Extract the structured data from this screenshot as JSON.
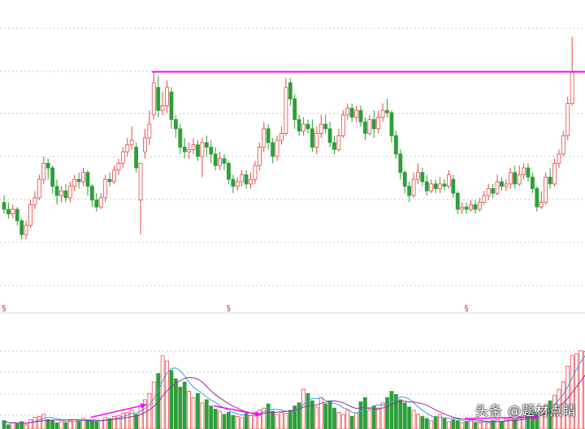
{
  "chart_data": {
    "type": "candlestick_with_volume",
    "title": "",
    "colors": {
      "up": "#e8474a",
      "down": "#2e9e3a",
      "resistance": "#ff00ff",
      "arrow": "#ff00ff",
      "ma_short": "#3aa0e0",
      "ma_long": "#a02a9a",
      "grid": "#c8c8c8",
      "divider": "#d0d0d0"
    },
    "price_range": [
      3.0,
      16.4
    ],
    "volume_range": [
      0,
      100
    ],
    "resistance_level": 13.28,
    "markers": [
      {
        "index": 0,
        "symbol": "§"
      },
      {
        "index": 51,
        "symbol": "§"
      },
      {
        "index": 105,
        "symbol": "§"
      }
    ],
    "candles": [
      {
        "o": 7.6,
        "c": 7.3,
        "h": 7.9,
        "l": 7.1
      },
      {
        "o": 7.3,
        "c": 7.1,
        "h": 7.6,
        "l": 6.9
      },
      {
        "o": 7.1,
        "c": 7.3,
        "h": 7.5,
        "l": 6.9
      },
      {
        "o": 7.3,
        "c": 6.8,
        "h": 7.4,
        "l": 6.6
      },
      {
        "o": 6.8,
        "c": 6.2,
        "h": 6.9,
        "l": 6.0
      },
      {
        "o": 6.2,
        "c": 6.6,
        "h": 6.8,
        "l": 6.0
      },
      {
        "o": 6.6,
        "c": 7.5,
        "h": 7.7,
        "l": 6.5
      },
      {
        "o": 7.5,
        "c": 7.8,
        "h": 8.1,
        "l": 7.3
      },
      {
        "o": 7.8,
        "c": 8.6,
        "h": 8.8,
        "l": 7.7
      },
      {
        "o": 8.6,
        "c": 9.3,
        "h": 9.6,
        "l": 8.4
      },
      {
        "o": 9.3,
        "c": 9.1,
        "h": 9.5,
        "l": 8.6
      },
      {
        "o": 9.1,
        "c": 8.3,
        "h": 9.2,
        "l": 8.0
      },
      {
        "o": 8.3,
        "c": 7.9,
        "h": 8.6,
        "l": 7.5
      },
      {
        "o": 7.9,
        "c": 8.1,
        "h": 8.3,
        "l": 7.6
      },
      {
        "o": 8.1,
        "c": 7.8,
        "h": 8.4,
        "l": 7.6
      },
      {
        "o": 7.8,
        "c": 8.3,
        "h": 8.5,
        "l": 7.6
      },
      {
        "o": 8.3,
        "c": 8.6,
        "h": 8.8,
        "l": 8.1
      },
      {
        "o": 8.6,
        "c": 8.5,
        "h": 8.9,
        "l": 8.2
      },
      {
        "o": 8.5,
        "c": 8.9,
        "h": 9.1,
        "l": 8.3
      },
      {
        "o": 8.9,
        "c": 8.3,
        "h": 9.0,
        "l": 7.9
      },
      {
        "o": 8.3,
        "c": 7.7,
        "h": 8.4,
        "l": 7.4
      },
      {
        "o": 7.7,
        "c": 7.4,
        "h": 8.0,
        "l": 7.2
      },
      {
        "o": 7.4,
        "c": 7.8,
        "h": 8.0,
        "l": 7.3
      },
      {
        "o": 7.8,
        "c": 8.6,
        "h": 8.8,
        "l": 7.6
      },
      {
        "o": 8.6,
        "c": 8.5,
        "h": 8.9,
        "l": 8.3
      },
      {
        "o": 8.5,
        "c": 9.0,
        "h": 9.2,
        "l": 8.4
      },
      {
        "o": 9.0,
        "c": 9.3,
        "h": 9.5,
        "l": 8.8
      },
      {
        "o": 9.3,
        "c": 9.8,
        "h": 10.0,
        "l": 9.1
      },
      {
        "o": 9.8,
        "c": 10.1,
        "h": 10.4,
        "l": 9.6
      },
      {
        "o": 10.1,
        "c": 10.3,
        "h": 10.9,
        "l": 9.9
      },
      {
        "o": 10.0,
        "c": 9.1,
        "h": 10.2,
        "l": 8.9
      },
      {
        "o": 7.7,
        "c": 9.3,
        "h": 9.3,
        "l": 6.2
      },
      {
        "o": 9.8,
        "c": 10.4,
        "h": 10.8,
        "l": 9.5
      },
      {
        "o": 10.4,
        "c": 11.0,
        "h": 11.6,
        "l": 10.1
      },
      {
        "o": 11.4,
        "c": 12.8,
        "h": 13.3,
        "l": 11.2
      },
      {
        "o": 12.6,
        "c": 11.6,
        "h": 13.1,
        "l": 11.3
      },
      {
        "o": 11.6,
        "c": 11.8,
        "h": 12.4,
        "l": 11.4
      },
      {
        "o": 11.8,
        "c": 12.6,
        "h": 12.9,
        "l": 11.5
      },
      {
        "o": 12.4,
        "c": 11.2,
        "h": 12.6,
        "l": 10.8
      },
      {
        "o": 11.2,
        "c": 10.8,
        "h": 11.4,
        "l": 10.4
      },
      {
        "o": 10.8,
        "c": 10.0,
        "h": 11.0,
        "l": 9.7
      },
      {
        "o": 10.0,
        "c": 9.8,
        "h": 10.4,
        "l": 9.5
      },
      {
        "o": 9.8,
        "c": 9.9,
        "h": 10.2,
        "l": 9.5
      },
      {
        "o": 9.9,
        "c": 10.1,
        "h": 10.4,
        "l": 9.7
      },
      {
        "o": 10.1,
        "c": 9.6,
        "h": 10.3,
        "l": 9.4
      },
      {
        "o": 9.6,
        "c": 10.2,
        "h": 10.4,
        "l": 8.7
      },
      {
        "o": 10.2,
        "c": 10.0,
        "h": 10.5,
        "l": 9.6
      },
      {
        "o": 10.0,
        "c": 9.7,
        "h": 10.3,
        "l": 9.3
      },
      {
        "o": 9.7,
        "c": 9.2,
        "h": 10.0,
        "l": 9.0
      },
      {
        "o": 9.2,
        "c": 9.5,
        "h": 9.8,
        "l": 9.0
      },
      {
        "o": 9.5,
        "c": 9.3,
        "h": 9.7,
        "l": 9.0
      },
      {
        "o": 9.3,
        "c": 8.6,
        "h": 9.4,
        "l": 8.4
      },
      {
        "o": 8.6,
        "c": 8.3,
        "h": 8.8,
        "l": 8.0
      },
      {
        "o": 8.3,
        "c": 8.5,
        "h": 8.7,
        "l": 8.1
      },
      {
        "o": 8.5,
        "c": 8.8,
        "h": 9.0,
        "l": 8.3
      },
      {
        "o": 8.8,
        "c": 8.4,
        "h": 9.0,
        "l": 8.2
      },
      {
        "o": 8.4,
        "c": 8.6,
        "h": 8.9,
        "l": 8.2
      },
      {
        "o": 8.6,
        "c": 9.2,
        "h": 9.4,
        "l": 8.4
      },
      {
        "o": 9.2,
        "c": 10.0,
        "h": 10.2,
        "l": 9.0
      },
      {
        "o": 10.0,
        "c": 10.8,
        "h": 11.1,
        "l": 9.8
      },
      {
        "o": 10.8,
        "c": 10.2,
        "h": 11.0,
        "l": 9.9
      },
      {
        "o": 10.2,
        "c": 9.6,
        "h": 10.4,
        "l": 9.3
      },
      {
        "o": 9.6,
        "c": 10.3,
        "h": 10.5,
        "l": 9.4
      },
      {
        "o": 10.3,
        "c": 10.6,
        "h": 10.9,
        "l": 10.1
      },
      {
        "o": 10.6,
        "c": 12.6,
        "h": 13.0,
        "l": 10.5
      },
      {
        "o": 12.8,
        "c": 12.1,
        "h": 13.0,
        "l": 11.8
      },
      {
        "o": 12.1,
        "c": 11.2,
        "h": 12.3,
        "l": 10.8
      },
      {
        "o": 11.2,
        "c": 10.7,
        "h": 11.4,
        "l": 10.5
      },
      {
        "o": 10.7,
        "c": 11.0,
        "h": 11.3,
        "l": 10.5
      },
      {
        "o": 11.0,
        "c": 10.8,
        "h": 11.2,
        "l": 10.6
      },
      {
        "o": 10.8,
        "c": 10.0,
        "h": 11.2,
        "l": 9.8
      },
      {
        "o": 10.0,
        "c": 10.6,
        "h": 10.9,
        "l": 9.7
      },
      {
        "o": 10.6,
        "c": 11.0,
        "h": 11.4,
        "l": 10.4
      },
      {
        "o": 11.0,
        "c": 10.8,
        "h": 11.4,
        "l": 10.6
      },
      {
        "o": 10.8,
        "c": 10.2,
        "h": 11.1,
        "l": 10.0
      },
      {
        "o": 10.2,
        "c": 9.9,
        "h": 10.5,
        "l": 9.7
      },
      {
        "o": 9.9,
        "c": 10.5,
        "h": 10.8,
        "l": 9.8
      },
      {
        "o": 10.5,
        "c": 11.4,
        "h": 11.6,
        "l": 10.4
      },
      {
        "o": 11.4,
        "c": 11.7,
        "h": 11.9,
        "l": 11.2
      },
      {
        "o": 11.7,
        "c": 11.3,
        "h": 11.9,
        "l": 11.1
      },
      {
        "o": 11.3,
        "c": 11.6,
        "h": 11.8,
        "l": 11.1
      },
      {
        "o": 11.6,
        "c": 11.1,
        "h": 11.8,
        "l": 10.9
      },
      {
        "o": 11.1,
        "c": 10.6,
        "h": 11.3,
        "l": 10.3
      },
      {
        "o": 10.6,
        "c": 11.2,
        "h": 11.4,
        "l": 10.5
      },
      {
        "o": 11.2,
        "c": 10.8,
        "h": 11.6,
        "l": 10.4
      },
      {
        "o": 10.8,
        "c": 11.3,
        "h": 11.6,
        "l": 10.6
      },
      {
        "o": 11.3,
        "c": 11.6,
        "h": 11.9,
        "l": 11.1
      },
      {
        "o": 11.6,
        "c": 11.5,
        "h": 12.1,
        "l": 11.3
      },
      {
        "o": 11.5,
        "c": 10.5,
        "h": 11.6,
        "l": 10.2
      },
      {
        "o": 10.5,
        "c": 9.7,
        "h": 10.7,
        "l": 9.5
      },
      {
        "o": 9.7,
        "c": 8.9,
        "h": 9.9,
        "l": 8.6
      },
      {
        "o": 8.9,
        "c": 8.3,
        "h": 9.0,
        "l": 8.0
      },
      {
        "o": 8.3,
        "c": 7.9,
        "h": 8.5,
        "l": 7.6
      },
      {
        "o": 7.9,
        "c": 8.6,
        "h": 8.9,
        "l": 7.8
      },
      {
        "o": 8.6,
        "c": 8.9,
        "h": 9.3,
        "l": 8.4
      },
      {
        "o": 8.9,
        "c": 8.5,
        "h": 9.1,
        "l": 8.3
      },
      {
        "o": 8.5,
        "c": 8.1,
        "h": 8.8,
        "l": 7.9
      },
      {
        "o": 8.1,
        "c": 8.4,
        "h": 8.6,
        "l": 8.0
      },
      {
        "o": 8.4,
        "c": 8.2,
        "h": 8.6,
        "l": 8.0
      },
      {
        "o": 8.2,
        "c": 8.4,
        "h": 8.7,
        "l": 8.0
      },
      {
        "o": 8.4,
        "c": 8.3,
        "h": 8.6,
        "l": 8.1
      },
      {
        "o": 8.3,
        "c": 8.8,
        "h": 9.0,
        "l": 8.2
      },
      {
        "o": 8.6,
        "c": 8.0,
        "h": 8.8,
        "l": 7.8
      },
      {
        "o": 8.0,
        "c": 7.3,
        "h": 8.1,
        "l": 7.1
      },
      {
        "o": 7.3,
        "c": 7.4,
        "h": 7.6,
        "l": 7.1
      },
      {
        "o": 7.4,
        "c": 7.3,
        "h": 7.6,
        "l": 7.1
      },
      {
        "o": 7.3,
        "c": 7.5,
        "h": 7.7,
        "l": 7.2
      },
      {
        "o": 7.5,
        "c": 7.3,
        "h": 7.7,
        "l": 7.1
      },
      {
        "o": 7.3,
        "c": 7.6,
        "h": 7.8,
        "l": 7.2
      },
      {
        "o": 7.6,
        "c": 7.9,
        "h": 8.1,
        "l": 7.5
      },
      {
        "o": 7.9,
        "c": 8.2,
        "h": 8.4,
        "l": 7.7
      },
      {
        "o": 8.2,
        "c": 8.0,
        "h": 8.4,
        "l": 7.8
      },
      {
        "o": 8.0,
        "c": 8.5,
        "h": 8.8,
        "l": 7.9
      },
      {
        "o": 8.5,
        "c": 8.3,
        "h": 8.7,
        "l": 8.1
      },
      {
        "o": 8.3,
        "c": 8.4,
        "h": 8.6,
        "l": 8.1
      },
      {
        "o": 8.4,
        "c": 8.9,
        "h": 9.1,
        "l": 8.2
      },
      {
        "o": 8.9,
        "c": 8.4,
        "h": 9.2,
        "l": 8.2
      },
      {
        "o": 8.4,
        "c": 8.8,
        "h": 9.2,
        "l": 8.3
      },
      {
        "o": 8.8,
        "c": 9.1,
        "h": 9.3,
        "l": 8.6
      },
      {
        "o": 9.1,
        "c": 8.7,
        "h": 9.3,
        "l": 8.5
      },
      {
        "o": 8.7,
        "c": 8.2,
        "h": 8.9,
        "l": 8.0
      },
      {
        "o": 8.2,
        "c": 7.4,
        "h": 8.3,
        "l": 7.2
      },
      {
        "o": 7.4,
        "c": 7.6,
        "h": 8.1,
        "l": 7.3
      },
      {
        "o": 7.6,
        "c": 8.7,
        "h": 8.9,
        "l": 7.5
      },
      {
        "o": 8.7,
        "c": 8.4,
        "h": 9.1,
        "l": 8.2
      },
      {
        "o": 8.4,
        "c": 9.3,
        "h": 9.5,
        "l": 8.3
      },
      {
        "o": 9.3,
        "c": 9.7,
        "h": 9.9,
        "l": 9.1
      },
      {
        "o": 9.7,
        "c": 10.5,
        "h": 10.7,
        "l": 9.6
      },
      {
        "o": 10.5,
        "c": 11.9,
        "h": 12.2,
        "l": 10.3
      },
      {
        "o": 11.9,
        "c": 13.3,
        "h": 14.8,
        "l": 11.8
      }
    ],
    "volume_steps": [
      [
        8,
        4,
        6,
        5,
        7,
        4,
        9,
        11,
        12,
        14,
        9,
        8,
        6,
        7,
        6,
        8,
        9,
        8,
        10,
        9,
        8,
        7,
        8,
        11,
        10,
        12,
        13,
        15,
        16,
        18,
        14,
        22
      ],
      [
        28,
        34,
        45,
        53,
        70,
        65,
        56,
        48,
        40,
        45,
        36,
        30,
        34,
        25,
        28,
        22,
        19,
        17,
        14,
        16,
        13,
        12,
        11,
        15,
        13,
        16,
        18,
        20,
        24,
        17,
        14,
        16
      ],
      [
        15,
        18,
        22,
        25,
        38,
        34,
        27,
        21,
        30,
        24,
        27,
        20,
        16,
        14,
        18,
        12,
        15,
        26,
        30,
        18,
        22,
        20,
        25,
        30,
        36,
        33,
        28,
        25,
        21,
        18,
        14,
        12
      ],
      [
        10,
        8,
        12,
        14,
        10,
        7,
        9,
        8,
        6,
        7,
        9,
        6,
        6,
        7,
        6,
        8,
        9,
        7,
        10,
        11,
        9,
        12,
        13,
        15,
        18,
        16,
        20,
        23,
        27,
        32,
        38,
        45,
        60,
        70
      ],
      [
        72,
        75,
        74
      ]
    ],
    "volume_up_down": "mixed",
    "annotations": [
      {
        "type": "arrow",
        "from_index": 20,
        "to_index": 32,
        "target": "volume"
      },
      {
        "type": "arrow",
        "from_index": 48,
        "to_index": 58,
        "target": "volume"
      },
      {
        "type": "arrow",
        "from_index": 105,
        "to_index": 121,
        "target": "volume"
      }
    ]
  },
  "watermark": "头条 @题材点睛"
}
